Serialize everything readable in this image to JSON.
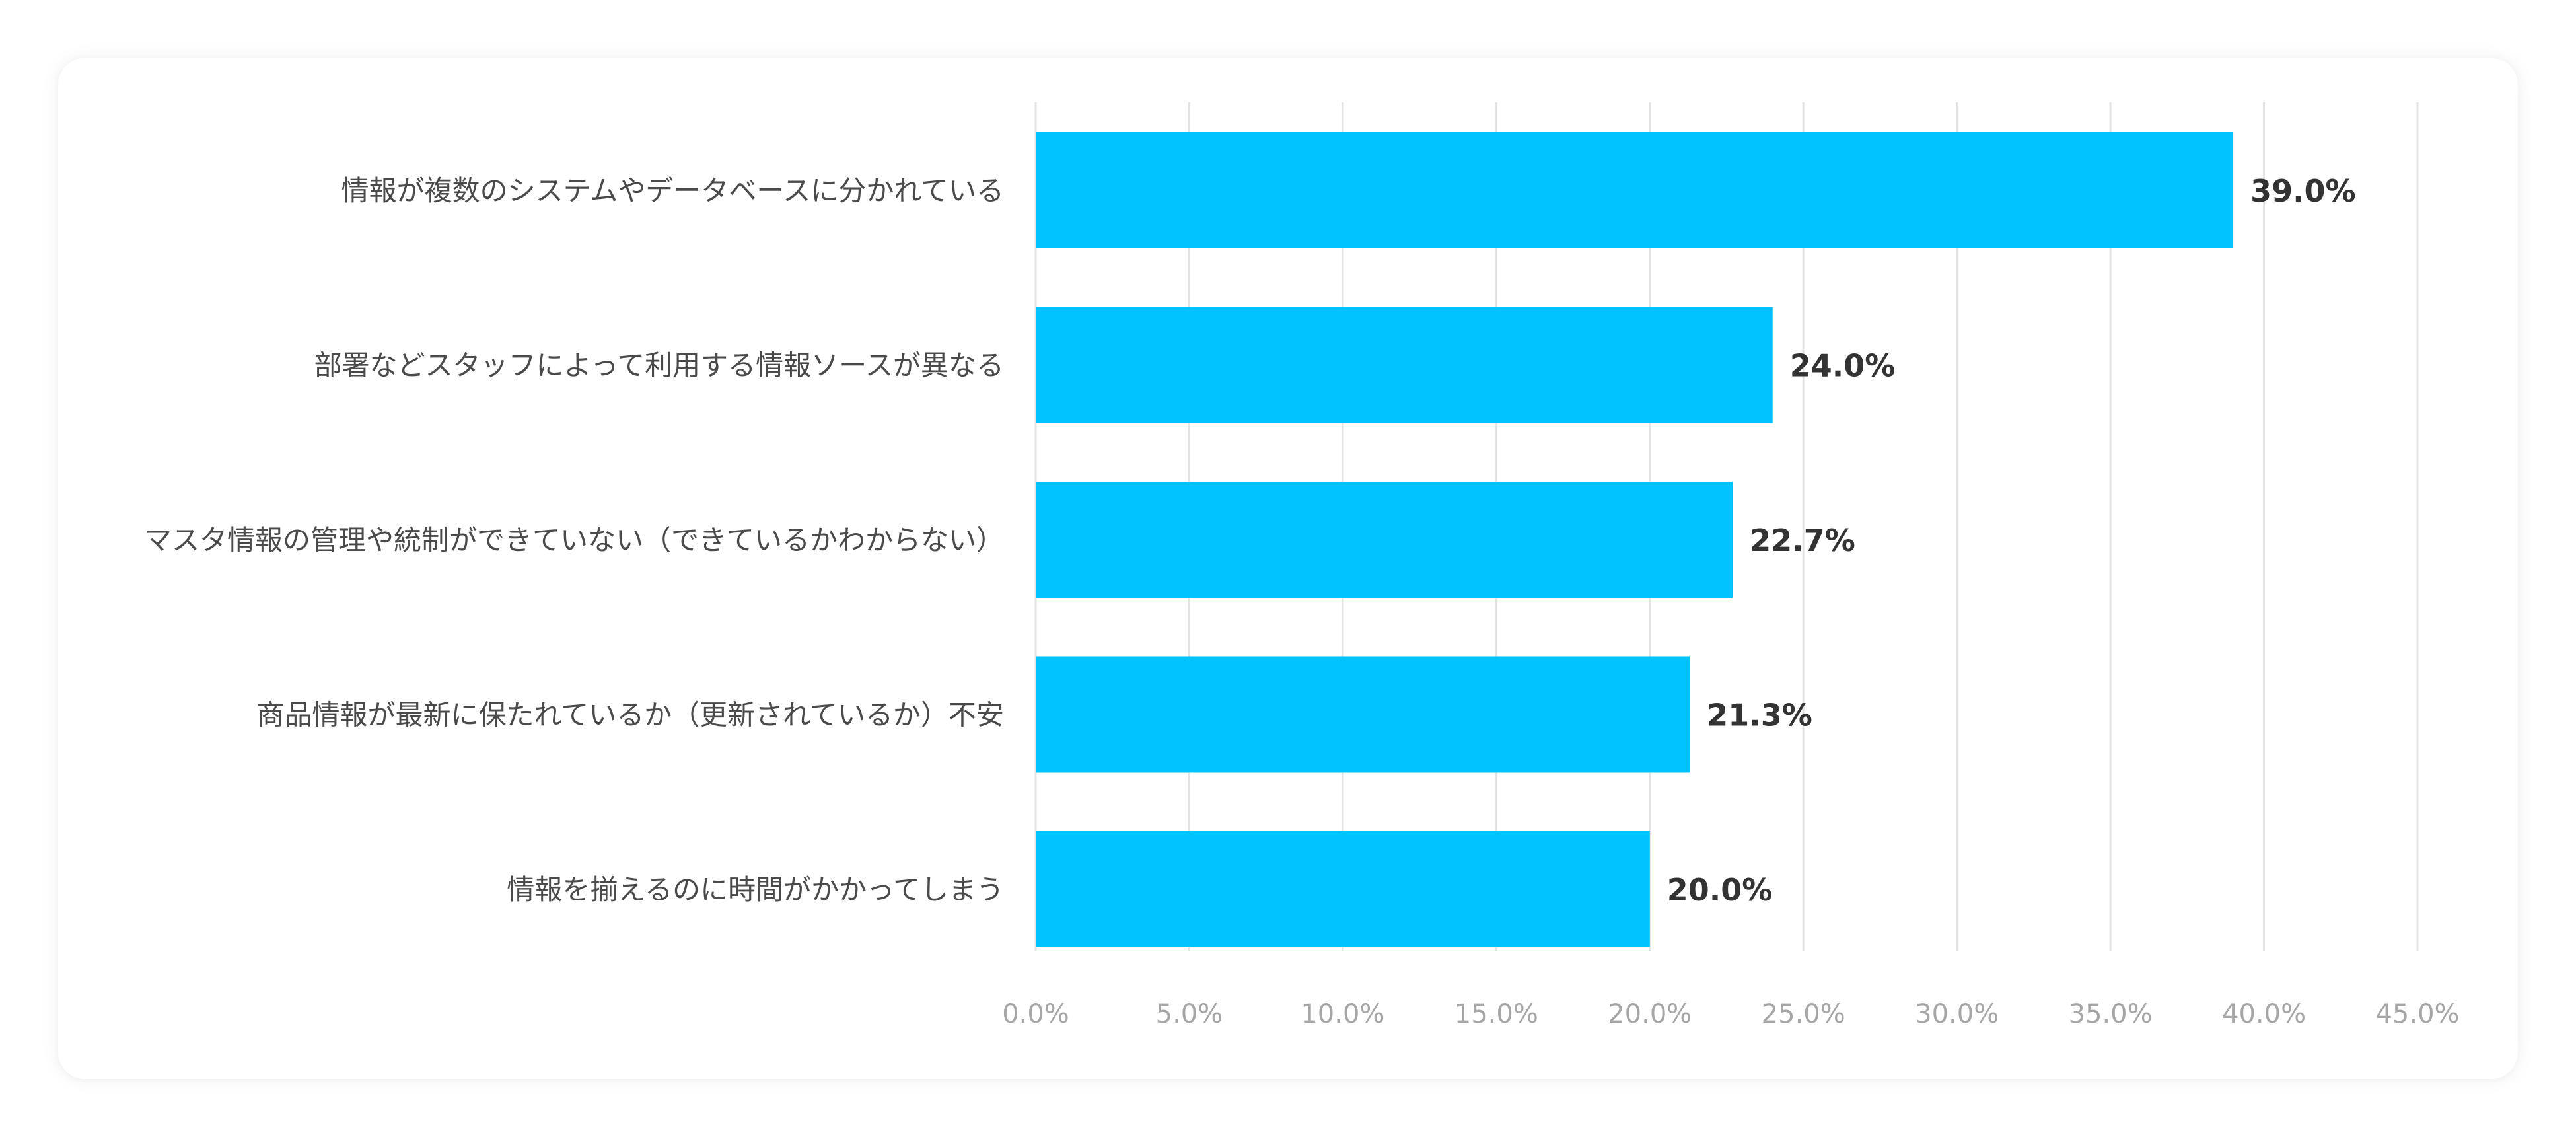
{
  "chart_data": {
    "type": "bar",
    "orientation": "horizontal",
    "categories": [
      "情報が複数のシステムやデータベースに分かれている",
      "部署などスタッフによって利用する情報ソースが異なる",
      "マスタ情報の管理や統制ができていない（できているかわからない）",
      "商品情報が最新に保たれているか（更新されているか）不安",
      "情報を揃えるのに時間がかかってしまう"
    ],
    "values": [
      39.0,
      24.0,
      22.7,
      21.3,
      20.0
    ],
    "value_labels": [
      "39.0%",
      "24.0%",
      "22.7%",
      "21.3%",
      "20.0%"
    ],
    "xlim": [
      0,
      45
    ],
    "x_ticks": [
      0,
      5,
      10,
      15,
      20,
      25,
      30,
      35,
      40,
      45
    ],
    "x_tick_labels": [
      "0.0%",
      "5.0%",
      "10.0%",
      "15.0%",
      "20.0%",
      "25.0%",
      "30.0%",
      "35.0%",
      "40.0%",
      "45.0%"
    ],
    "grid": "vertical",
    "legend": "none",
    "bar_color": "#00c3ff",
    "grid_color": "#e3e3e3"
  }
}
